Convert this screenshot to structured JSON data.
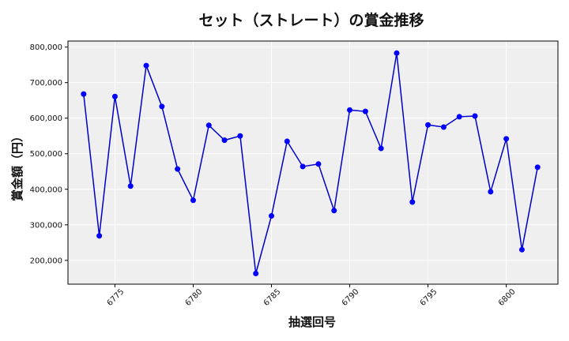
{
  "chart_data": {
    "type": "line",
    "title": "セット（ストレート）の賞金推移",
    "xlabel": "抽選回号",
    "ylabel": "賞金額（円）",
    "x": [
      6773,
      6774,
      6775,
      6776,
      6777,
      6778,
      6779,
      6780,
      6781,
      6782,
      6783,
      6784,
      6785,
      6786,
      6787,
      6788,
      6789,
      6790,
      6791,
      6792,
      6793,
      6794,
      6795,
      6796,
      6797,
      6798,
      6799,
      6800,
      6801,
      6802
    ],
    "y": [
      668000,
      269000,
      661000,
      409000,
      748000,
      633000,
      457000,
      369000,
      580000,
      538000,
      550000,
      163000,
      325000,
      535000,
      464000,
      471000,
      340000,
      623000,
      619000,
      515000,
      783000,
      364000,
      581000,
      575000,
      604000,
      606000,
      393000,
      542000,
      230000,
      462000
    ],
    "xlim": [
      6772,
      6803.3
    ],
    "ylim": [
      133000,
      817000
    ],
    "xticks": [
      6775,
      6780,
      6785,
      6790,
      6795,
      6800
    ],
    "yticks": [
      200000,
      300000,
      400000,
      500000,
      600000,
      700000,
      800000
    ],
    "ytick_labels": [
      "200,000",
      "300,000",
      "400,000",
      "500,000",
      "600,000",
      "700,000",
      "800,000"
    ],
    "line_color": "#0000cc",
    "marker_color": "#0000ff",
    "background": "#efefef",
    "grid": true
  }
}
